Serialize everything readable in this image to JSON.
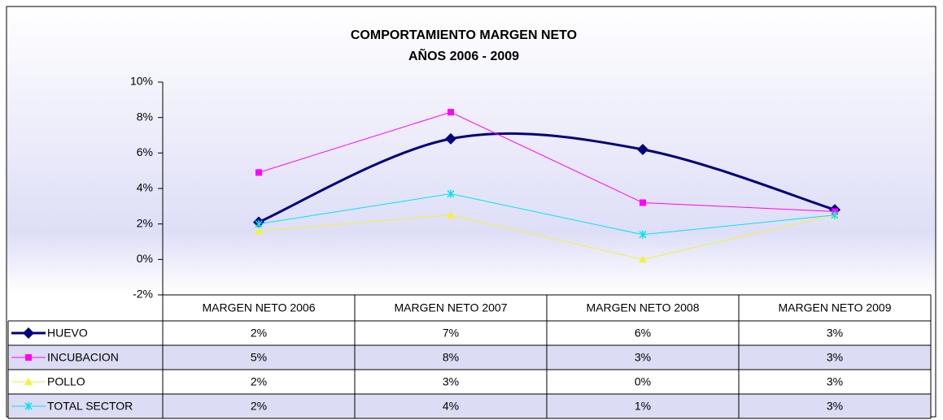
{
  "chart_data": {
    "type": "line",
    "title": "COMPORTAMIENTO MARGEN NETO",
    "subtitle": "AÑOS 2006 - 2009",
    "categories": [
      "MARGEN NETO 2006",
      "MARGEN NETO 2007",
      "MARGEN NETO 2008",
      "MARGEN NETO 2009"
    ],
    "series": [
      {
        "name": "HUEVO",
        "color": "#000080",
        "marker": "diamond",
        "smooth": true,
        "width": 3,
        "values": [
          2.1,
          6.8,
          6.2,
          2.8
        ],
        "value_labels": [
          "2%",
          "7%",
          "6%",
          "3%"
        ]
      },
      {
        "name": "INCUBACION",
        "color": "#ff00ff",
        "marker": "square",
        "smooth": false,
        "width": 1,
        "values": [
          4.9,
          8.3,
          3.2,
          2.7
        ],
        "value_labels": [
          "5%",
          "8%",
          "3%",
          "3%"
        ]
      },
      {
        "name": "POLLO",
        "color": "#f2f23a",
        "marker": "triangle",
        "smooth": false,
        "width": 1,
        "values": [
          1.6,
          2.5,
          0.0,
          2.5
        ],
        "value_labels": [
          "2%",
          "3%",
          "0%",
          "3%"
        ]
      },
      {
        "name": "TOTAL SECTOR",
        "color": "#00e5ee",
        "marker": "cross",
        "smooth": false,
        "width": 1,
        "values": [
          2.0,
          3.7,
          1.4,
          2.5
        ],
        "value_labels": [
          "2%",
          "4%",
          "1%",
          "3%"
        ]
      }
    ],
    "ylim": [
      -2,
      10
    ],
    "yticks": [
      {
        "value": -2,
        "label": "-2%"
      },
      {
        "value": 0,
        "label": "0%"
      },
      {
        "value": 2,
        "label": "2%"
      },
      {
        "value": 4,
        "label": "4%"
      },
      {
        "value": 6,
        "label": "6%"
      },
      {
        "value": 8,
        "label": "8%"
      },
      {
        "value": 10,
        "label": "10%"
      }
    ],
    "grid": false
  }
}
